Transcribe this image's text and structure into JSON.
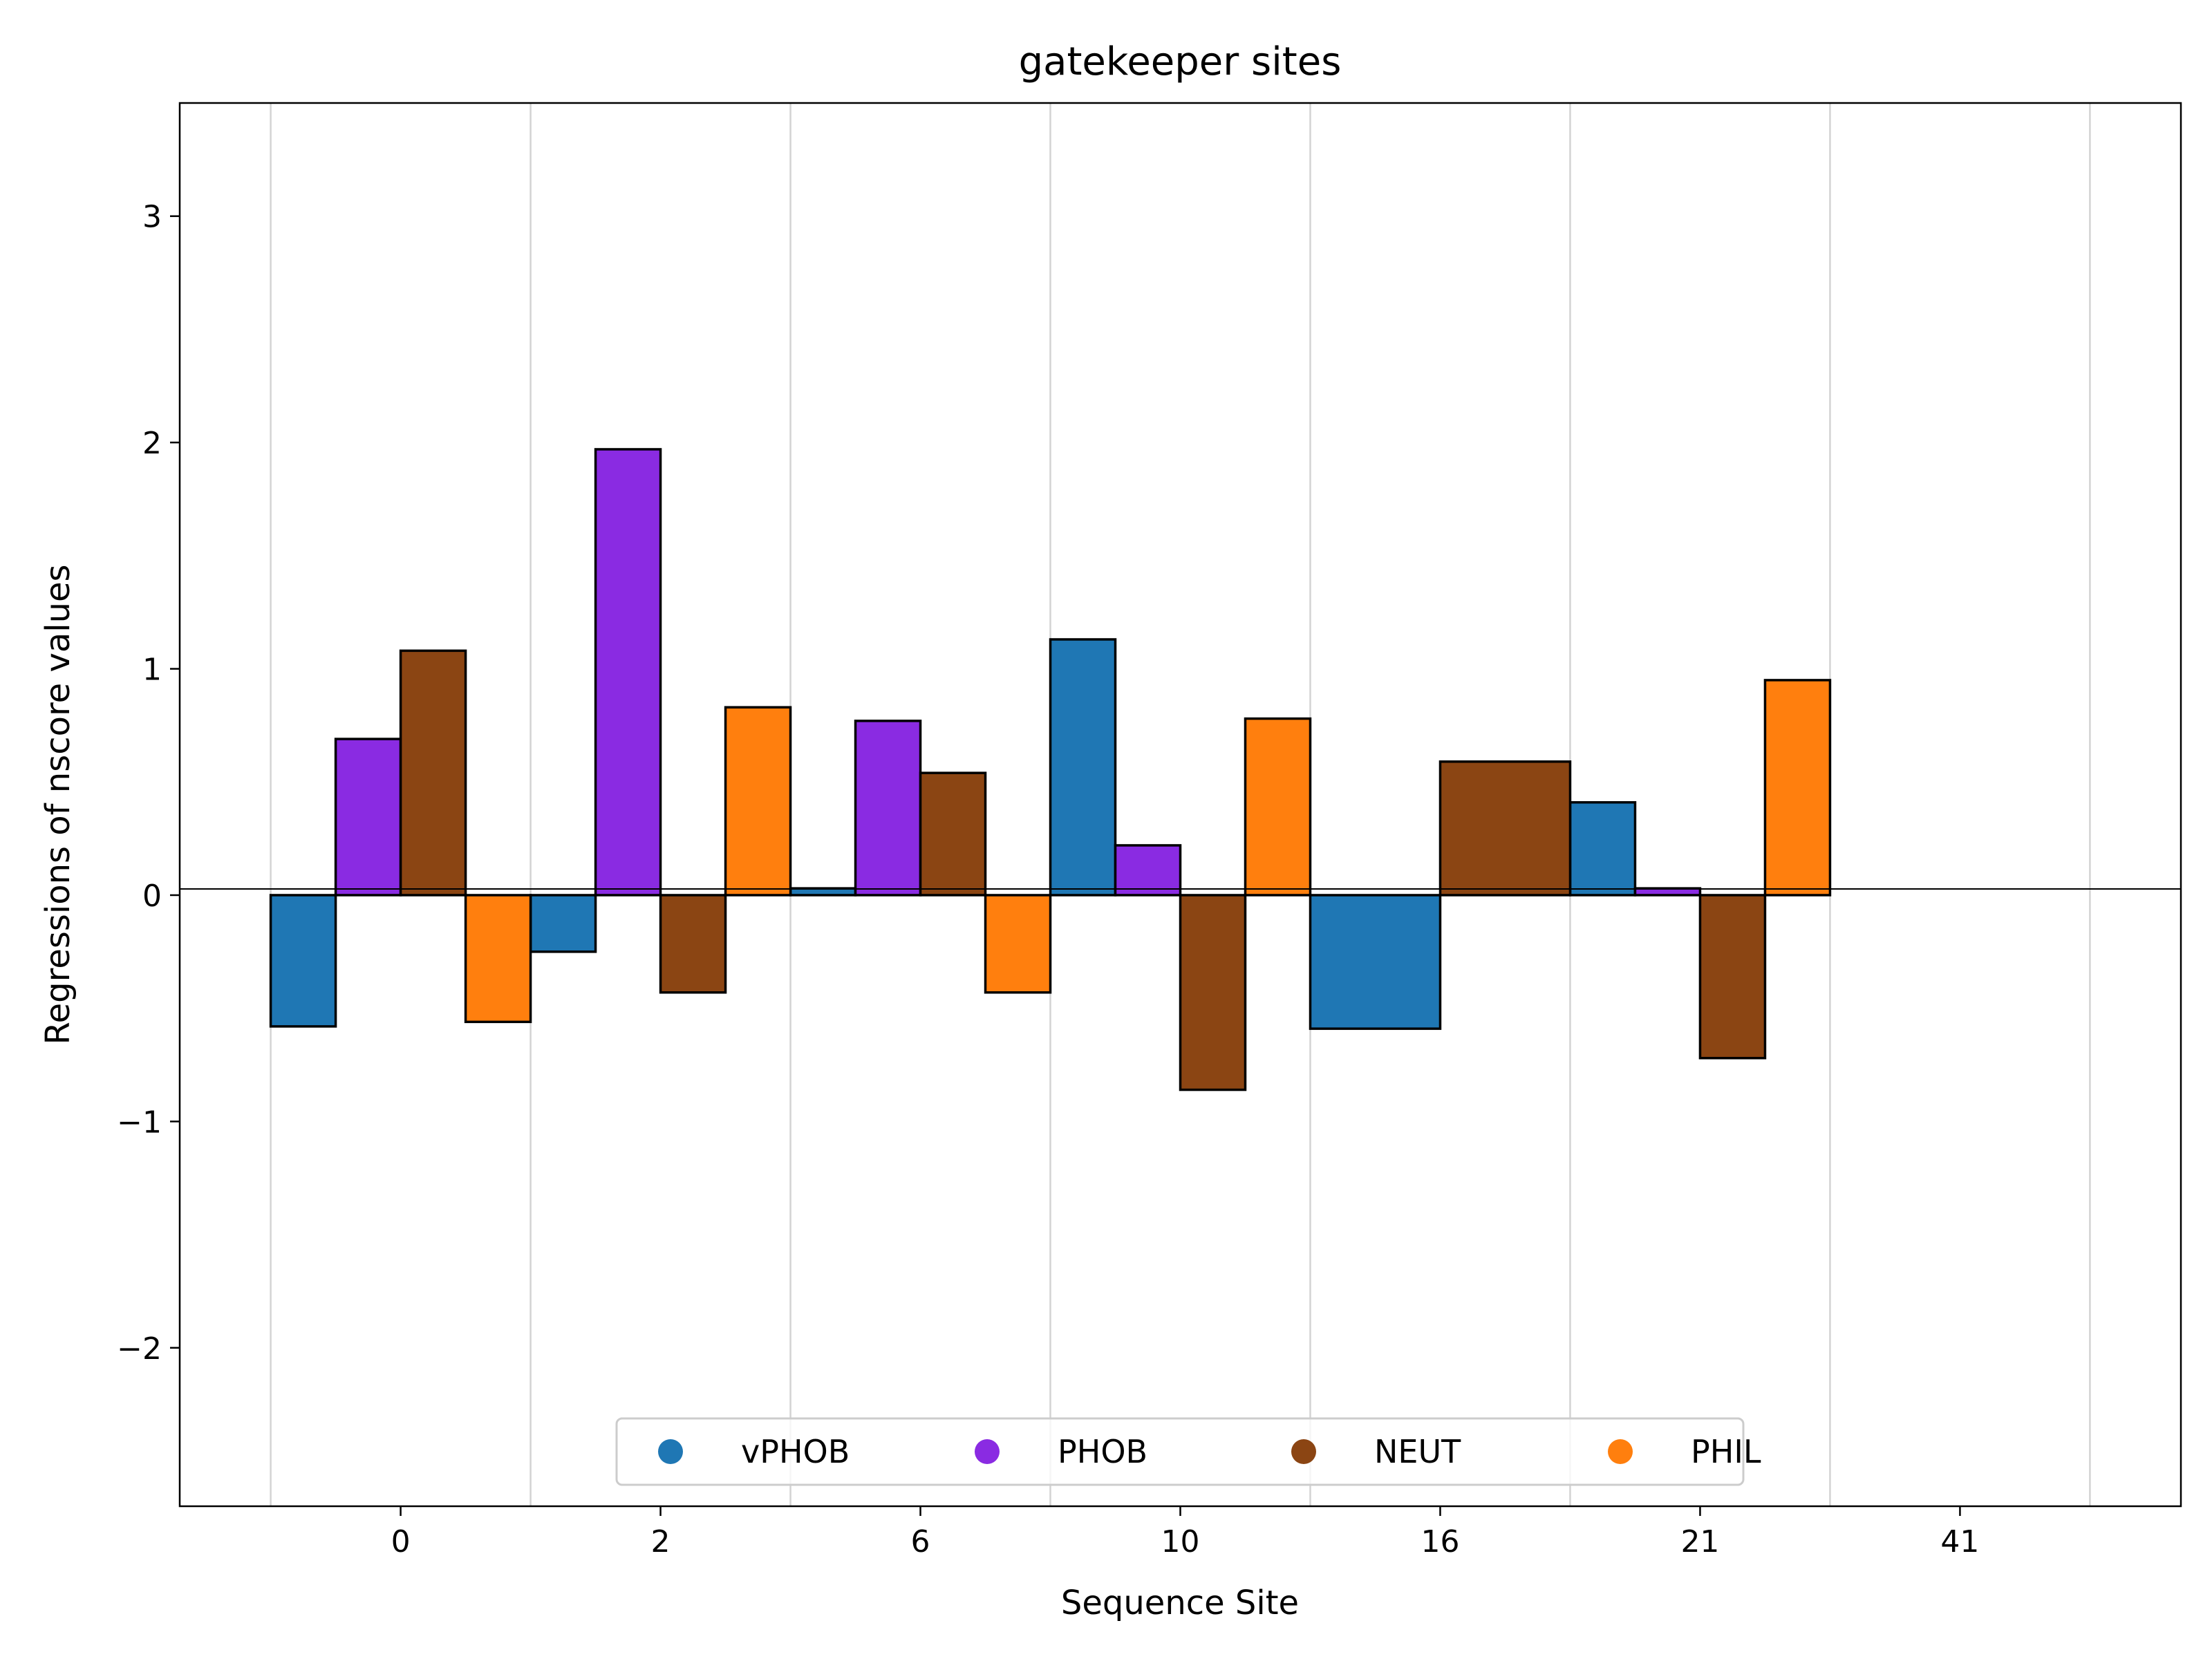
{
  "chart_data": {
    "type": "bar",
    "title": "gatekeeper sites",
    "xlabel": "Sequence Site",
    "ylabel": "Regressions of nscore values",
    "ylim": [
      -2.7,
      3.5
    ],
    "yticks": [
      -2,
      -1,
      0,
      1,
      2,
      3
    ],
    "grid": "vertical",
    "legend_placement": "lower center",
    "categories": [
      "0",
      "2",
      "6",
      "10",
      "16",
      "21",
      "41"
    ],
    "series": [
      {
        "name": "vPHOB",
        "color": "#1f77b4",
        "values": [
          -0.58,
          -0.25,
          0.03,
          1.13,
          -0.59,
          0.41,
          null
        ]
      },
      {
        "name": "PHOB",
        "color": "#8a2be2",
        "values": [
          0.69,
          1.97,
          0.77,
          0.22,
          null,
          0.03,
          null
        ]
      },
      {
        "name": "NEUT",
        "color": "#8b4513",
        "values": [
          1.08,
          -0.43,
          0.54,
          -0.86,
          0.59,
          -0.72,
          null
        ]
      },
      {
        "name": "PHIL",
        "color": "#ff7f0e",
        "values": [
          -0.56,
          0.83,
          -0.43,
          0.78,
          null,
          0.95,
          null
        ]
      }
    ]
  }
}
